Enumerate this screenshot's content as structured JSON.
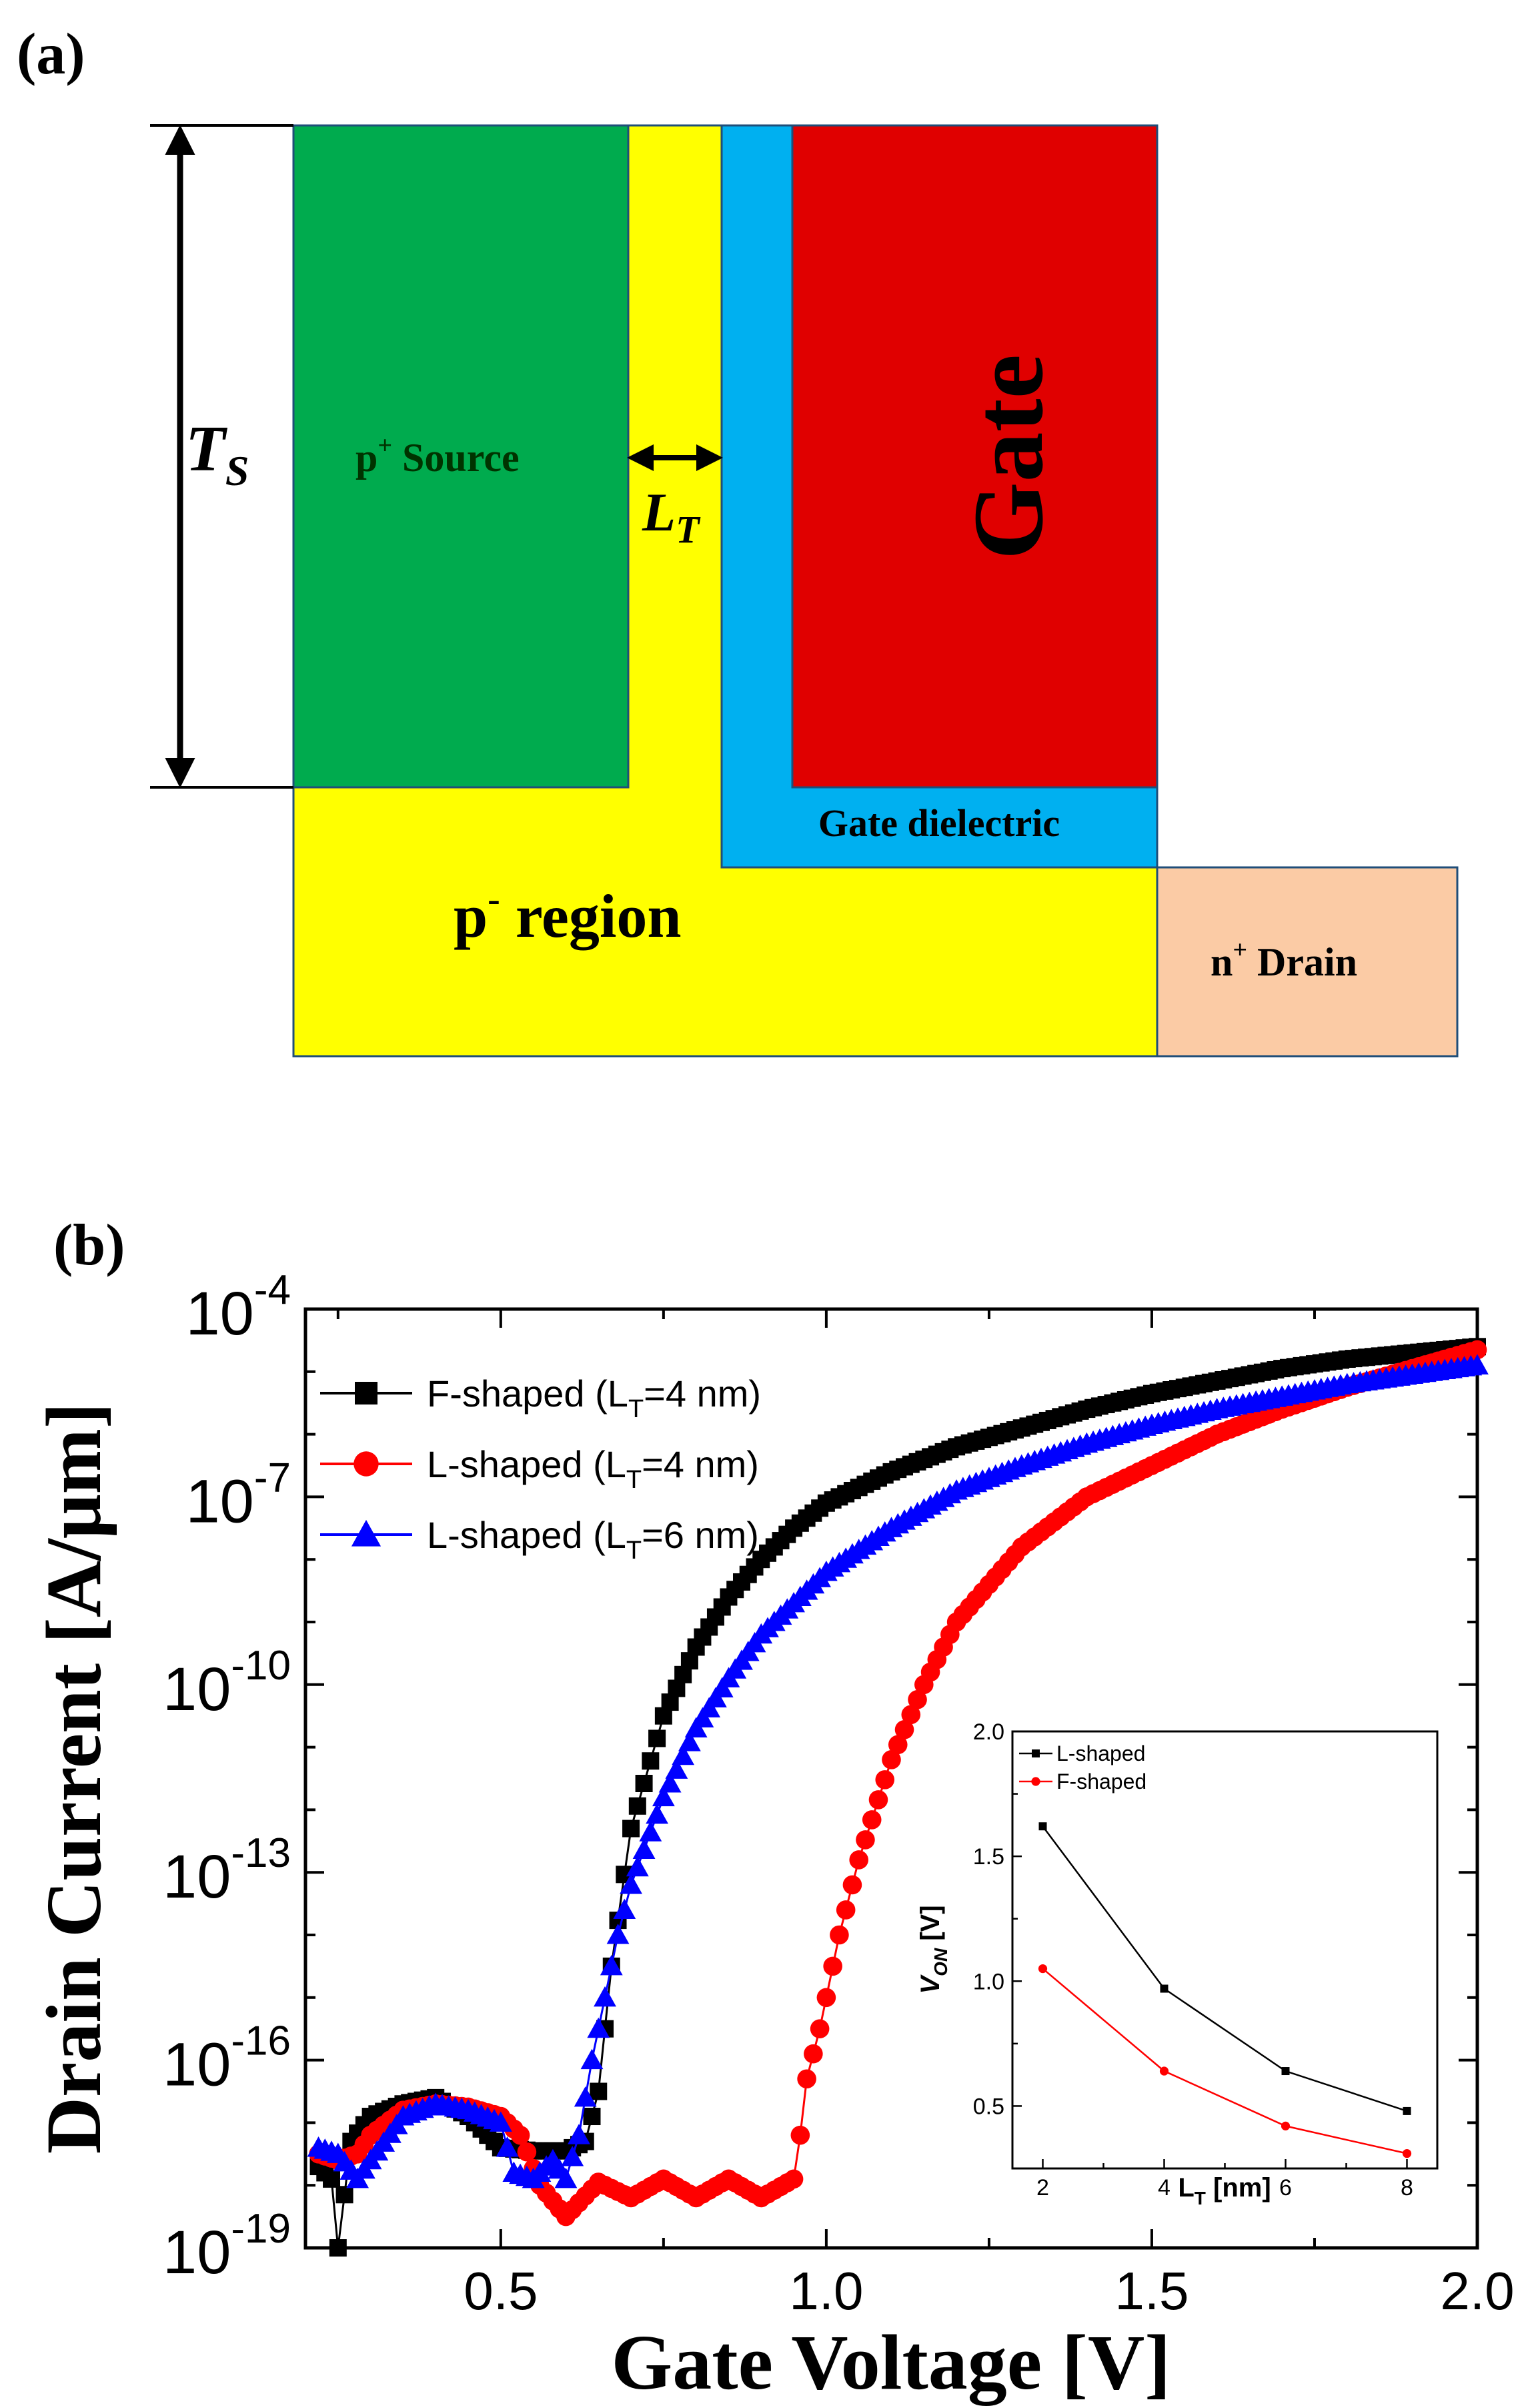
{
  "panel_a": {
    "label": "(a)",
    "ts_letter": "T",
    "ts_sub": "S",
    "lt_letter": "L",
    "lt_sub": "T",
    "source_prefix": "p",
    "source_sup": "+",
    "source_word": " Source",
    "gate_label": "Gate",
    "dielectric_label": "Gate dielectric",
    "region_prefix": "p",
    "region_sup": "-",
    "region_word": " region",
    "drain_prefix": "n",
    "drain_sup": "+",
    "drain_word": " Drain",
    "colors": {
      "source": "#00ab4e",
      "channel": "#ffff00",
      "dielectric": "#00b0f0",
      "gate": "#e00000",
      "drain": "#fbcba5",
      "outline": "#1f4e79"
    }
  },
  "panel_b": {
    "label": "(b)",
    "legend": [
      {
        "pre": "F-shaped (L",
        "sub": "T",
        "post": "=4 nm)",
        "color": "#000000",
        "marker": "square"
      },
      {
        "pre": "L-shaped (L",
        "sub": "T",
        "post": "=4 nm)",
        "color": "#ff0000",
        "marker": "circle"
      },
      {
        "pre": "L-shaped (L",
        "sub": "T",
        "post": "=6 nm)",
        "color": "#0000ff",
        "marker": "triangle"
      }
    ],
    "inset_legend": [
      "L-shaped",
      "F-shaped"
    ]
  },
  "chart_data": [
    {
      "type": "scatter",
      "xlabel": "Gate Voltage [V]",
      "ylabel": "Drain Current [A/μm]",
      "yscale": "log",
      "xlim": [
        0.2,
        2.0
      ],
      "ylim_exp": [
        -19,
        -4
      ],
      "xticks": [
        0.5,
        1.0,
        1.5,
        2.0
      ],
      "xtick_labels": [
        "0.5",
        "1.0",
        "1.5",
        "2.0"
      ],
      "yticks_exp": [
        -19,
        -16,
        -13,
        -10,
        -7,
        -4
      ],
      "ytick_labels": [
        {
          "base": "10",
          "exp": "-19"
        },
        {
          "base": "10",
          "exp": "-16"
        },
        {
          "base": "10",
          "exp": "-13"
        },
        {
          "base": "10",
          "exp": "-10"
        },
        {
          "base": "10",
          "exp": "-7"
        },
        {
          "base": "10",
          "exp": "-4"
        }
      ],
      "series": [
        {
          "name": "F-shaped (LT=4 nm)",
          "color": "#000000",
          "marker": "square",
          "points": [
            [
              0.22,
              -17.7
            ],
            [
              0.24,
              -17.9
            ],
            [
              0.25,
              -19.0
            ],
            [
              0.27,
              -17.3
            ],
            [
              0.3,
              -16.9
            ],
            [
              0.35,
              -16.7
            ],
            [
              0.4,
              -16.6
            ],
            [
              0.45,
              -16.9
            ],
            [
              0.5,
              -17.4
            ],
            [
              0.55,
              -17.45
            ],
            [
              0.6,
              -17.45
            ],
            [
              0.63,
              -17.3
            ],
            [
              0.65,
              -16.5
            ],
            [
              0.67,
              -14.5
            ],
            [
              0.7,
              -12.3
            ],
            [
              0.75,
              -10.5
            ],
            [
              0.8,
              -9.4
            ],
            [
              0.85,
              -8.6
            ],
            [
              0.9,
              -8.0
            ],
            [
              0.95,
              -7.5
            ],
            [
              1.0,
              -7.1
            ],
            [
              1.1,
              -6.6
            ],
            [
              1.2,
              -6.2
            ],
            [
              1.3,
              -5.9
            ],
            [
              1.4,
              -5.6
            ],
            [
              1.5,
              -5.35
            ],
            [
              1.6,
              -5.15
            ],
            [
              1.7,
              -4.95
            ],
            [
              1.8,
              -4.8
            ],
            [
              1.9,
              -4.7
            ],
            [
              2.0,
              -4.6
            ]
          ]
        },
        {
          "name": "L-shaped (LT=4 nm)",
          "color": "#ff0000",
          "marker": "circle",
          "points": [
            [
              0.22,
              -17.5
            ],
            [
              0.25,
              -17.6
            ],
            [
              0.28,
              -17.5
            ],
            [
              0.3,
              -17.2
            ],
            [
              0.35,
              -16.8
            ],
            [
              0.4,
              -16.7
            ],
            [
              0.45,
              -16.75
            ],
            [
              0.5,
              -16.9
            ],
            [
              0.53,
              -17.2
            ],
            [
              0.56,
              -18.0
            ],
            [
              0.6,
              -18.5
            ],
            [
              0.65,
              -17.95
            ],
            [
              0.7,
              -18.2
            ],
            [
              0.75,
              -17.9
            ],
            [
              0.8,
              -18.2
            ],
            [
              0.85,
              -17.9
            ],
            [
              0.9,
              -18.2
            ],
            [
              0.95,
              -17.9
            ],
            [
              0.96,
              -17.2
            ],
            [
              0.97,
              -16.3
            ],
            [
              0.99,
              -15.5
            ],
            [
              1.02,
              -14.0
            ],
            [
              1.05,
              -12.8
            ],
            [
              1.1,
              -11.2
            ],
            [
              1.15,
              -10.0
            ],
            [
              1.2,
              -9.0
            ],
            [
              1.3,
              -7.8
            ],
            [
              1.4,
              -7.0
            ],
            [
              1.5,
              -6.5
            ],
            [
              1.6,
              -6.0
            ],
            [
              1.7,
              -5.6
            ],
            [
              1.8,
              -5.25
            ],
            [
              1.9,
              -4.95
            ],
            [
              2.0,
              -4.65
            ]
          ]
        },
        {
          "name": "L-shaped (LT=6 nm)",
          "color": "#0000ff",
          "marker": "triangle",
          "points": [
            [
              0.22,
              -17.4
            ],
            [
              0.25,
              -17.5
            ],
            [
              0.28,
              -17.9
            ],
            [
              0.3,
              -17.6
            ],
            [
              0.35,
              -16.9
            ],
            [
              0.4,
              -16.7
            ],
            [
              0.45,
              -16.8
            ],
            [
              0.5,
              -17.0
            ],
            [
              0.52,
              -17.8
            ],
            [
              0.55,
              -17.9
            ],
            [
              0.58,
              -17.6
            ],
            [
              0.6,
              -17.9
            ],
            [
              0.62,
              -17.2
            ],
            [
              0.64,
              -16.0
            ],
            [
              0.66,
              -15.0
            ],
            [
              0.68,
              -14.0
            ],
            [
              0.7,
              -13.2
            ],
            [
              0.75,
              -11.8
            ],
            [
              0.8,
              -10.7
            ],
            [
              0.85,
              -9.9
            ],
            [
              0.9,
              -9.2
            ],
            [
              1.0,
              -8.2
            ],
            [
              1.1,
              -7.5
            ],
            [
              1.2,
              -6.9
            ],
            [
              1.3,
              -6.5
            ],
            [
              1.4,
              -6.15
            ],
            [
              1.5,
              -5.85
            ],
            [
              1.6,
              -5.6
            ],
            [
              1.7,
              -5.4
            ],
            [
              1.8,
              -5.2
            ],
            [
              1.9,
              -5.05
            ],
            [
              2.0,
              -4.9
            ]
          ]
        }
      ]
    },
    {
      "type": "line",
      "xlabel": "LT [nm]",
      "ylabel": "VON [V]",
      "xlim": [
        1.5,
        8.5
      ],
      "ylim": [
        0.25,
        2.0
      ],
      "xticks": [
        2,
        4,
        6,
        8
      ],
      "xtick_labels": [
        "2",
        "4",
        "6",
        "8"
      ],
      "yticks": [
        0.5,
        1.0,
        1.5,
        2.0
      ],
      "ytick_labels": [
        "0.5",
        "1.0",
        "1.5",
        "2.0"
      ],
      "series": [
        {
          "name": "L-shaped",
          "color": "#000000",
          "marker": "square",
          "x": [
            2,
            4,
            6,
            8
          ],
          "y": [
            1.62,
            0.97,
            0.64,
            0.48
          ]
        },
        {
          "name": "F-shaped",
          "color": "#ff0000",
          "marker": "circle",
          "x": [
            2,
            4,
            6,
            8
          ],
          "y": [
            1.05,
            0.64,
            0.42,
            0.31
          ]
        }
      ]
    }
  ]
}
